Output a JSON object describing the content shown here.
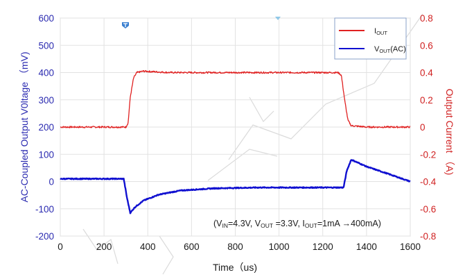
{
  "chart_data": {
    "type": "line",
    "xlabel": "Time（us)",
    "ylabel_left": "AC-Coupled Output V0ltage （mV)",
    "ylabel_right": "Output Current （A)",
    "x_ticks": [
      "0",
      "200",
      "400",
      "600",
      "800",
      "1000",
      "1200",
      "1400",
      "1600"
    ],
    "xlim": [
      0,
      1600
    ],
    "left_ticks": [
      "600",
      "500",
      "400",
      "300",
      "200",
      "100",
      "0",
      "-100",
      "-200"
    ],
    "ylim_left": [
      -200,
      600
    ],
    "right_ticks": [
      "0.8",
      "0.6",
      "0.4",
      "0.2",
      "0",
      "-0.2",
      "-0.4",
      "-0.6",
      "-0.8"
    ],
    "ylim_right": [
      -0.8,
      0.8
    ],
    "grid": true,
    "legend_placement": "top-right",
    "series": [
      {
        "name": "I_OUT",
        "label_main": "I",
        "label_sub": "OUT",
        "axis": "right",
        "color": "#e02020",
        "points": [
          [
            0,
            0.0
          ],
          [
            300,
            0.0
          ],
          [
            310,
            0.03
          ],
          [
            320,
            0.22
          ],
          [
            335,
            0.36
          ],
          [
            350,
            0.4
          ],
          [
            380,
            0.41
          ],
          [
            500,
            0.4
          ],
          [
            1000,
            0.4
          ],
          [
            1270,
            0.4
          ],
          [
            1285,
            0.38
          ],
          [
            1300,
            0.2
          ],
          [
            1315,
            0.05
          ],
          [
            1330,
            0.01
          ],
          [
            1400,
            0.0
          ],
          [
            1600,
            0.0
          ]
        ]
      },
      {
        "name": "V_OUT(AC)",
        "label_main": "V",
        "label_sub": "OUT",
        "label_suffix": "(AC)",
        "axis": "left",
        "color": "#1010d0",
        "points": [
          [
            0,
            10
          ],
          [
            290,
            10
          ],
          [
            305,
            -60
          ],
          [
            320,
            -115
          ],
          [
            340,
            -95
          ],
          [
            380,
            -70
          ],
          [
            450,
            -48
          ],
          [
            550,
            -33
          ],
          [
            700,
            -25
          ],
          [
            900,
            -22
          ],
          [
            1100,
            -22
          ],
          [
            1295,
            -22
          ],
          [
            1310,
            40
          ],
          [
            1330,
            80
          ],
          [
            1345,
            75
          ],
          [
            1400,
            55
          ],
          [
            1500,
            28
          ],
          [
            1600,
            0
          ]
        ]
      }
    ],
    "annotation": {
      "open": "(V",
      "vin_sub": "IN",
      "vin_val": "=4.3V, V",
      "vout_sub": "OUT",
      "vout_val": " =3.3V, I",
      "iout_sub": "OUT",
      "iout_val": "=1mA →400mA)"
    }
  }
}
